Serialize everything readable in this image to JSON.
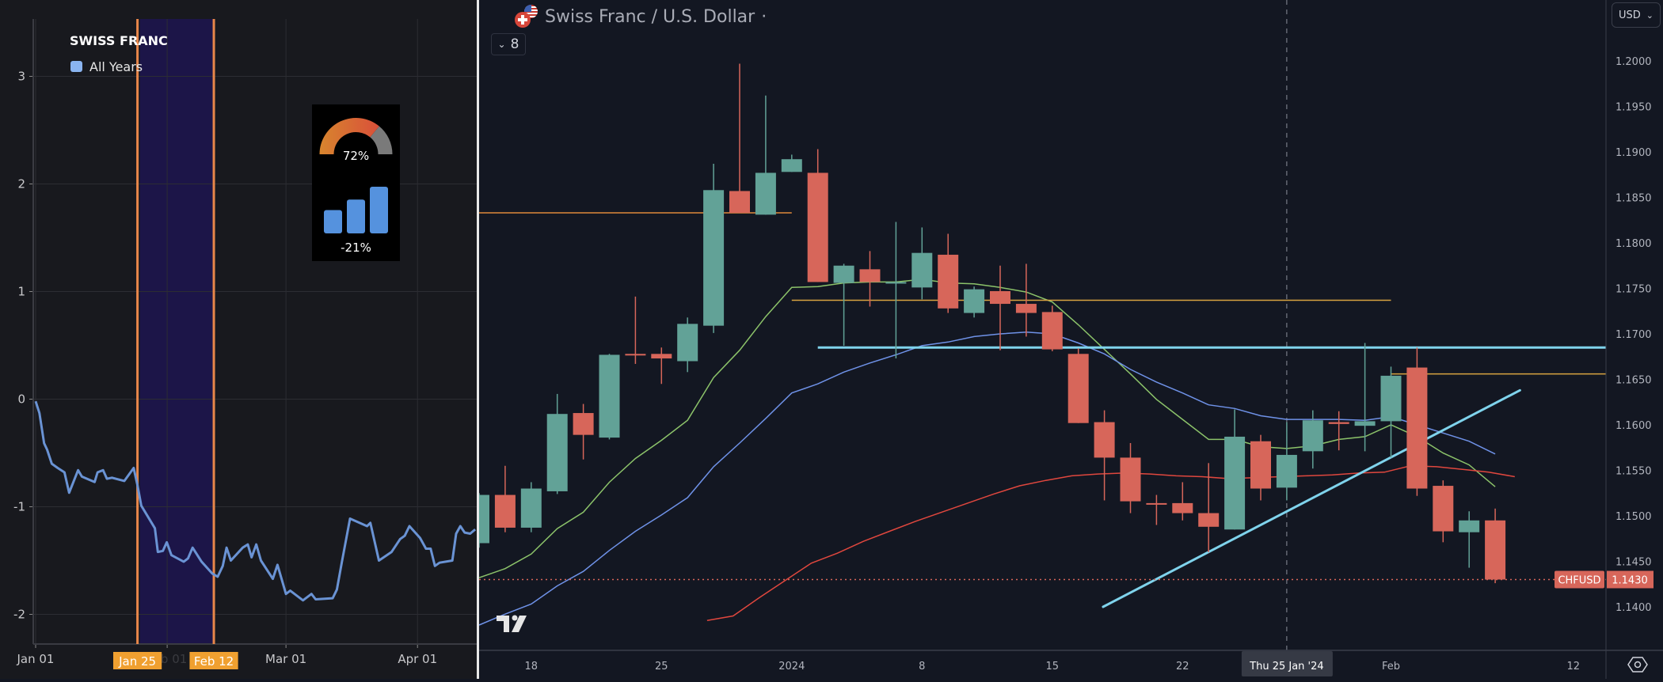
{
  "left_panel": {
    "legend_title": "SWISS FRANC",
    "legend_item": "All Years",
    "legend_color": "#8ab4f0",
    "line_color": "#6a93d4",
    "highlight_start_label": "Jan 25",
    "highlight_end_label": "Feb 12",
    "gauge": {
      "value_percent": 72,
      "label": "72%"
    },
    "bars_widget": {
      "values": [
        1,
        1.45,
        2
      ],
      "label": "-21%"
    }
  },
  "chart_data": [
    {
      "type": "line",
      "title": "SWISS FRANC",
      "legend": [
        "All Years"
      ],
      "x_unit": "day of year",
      "x_ticks": [
        {
          "day": 0,
          "label": "Jan 01"
        },
        {
          "day": 31,
          "label": "Feb 01"
        },
        {
          "day": 59,
          "label": "Mar 01"
        },
        {
          "day": 90,
          "label": "Apr 01"
        }
      ],
      "y_ticks": [
        3,
        2,
        1,
        0,
        -1,
        -2
      ],
      "ylim": [
        -2.28,
        3.46
      ],
      "xlim": [
        -0.5,
        103.6
      ],
      "highlight_range_days": [
        24,
        42
      ],
      "series": [
        {
          "name": "All Years",
          "x": [
            0,
            0.9,
            2,
            2.7,
            3.8,
            5.2,
            6.8,
            7.9,
            10,
            10.9,
            13.9,
            14.6,
            15.9,
            16.8,
            18,
            20.9,
            23.1,
            24,
            24.9,
            28.1,
            28.8,
            30,
            30.9,
            32,
            34.9,
            35.9,
            37,
            39.1,
            41.6,
            42.9,
            44.1,
            45,
            46,
            48.8,
            50,
            50.9,
            52,
            53.1,
            55.9,
            57,
            59,
            60,
            63,
            65,
            66,
            70,
            71,
            72.2,
            74.1,
            78.1,
            78.9,
            80.9,
            83.9,
            85.9,
            87,
            88.1,
            90.6,
            92,
            93.1,
            94.1,
            95.2,
            98.2,
            99.1,
            100.1,
            101.1,
            102.4,
            103.6
          ],
          "y": [
            -0.02,
            -0.13,
            -0.41,
            -0.47,
            -0.6,
            -0.64,
            -0.68,
            -0.87,
            -0.66,
            -0.72,
            -0.77,
            -0.68,
            -0.66,
            -0.74,
            -0.73,
            -0.76,
            -0.64,
            -0.8,
            -0.99,
            -1.2,
            -1.42,
            -1.41,
            -1.33,
            -1.45,
            -1.51,
            -1.48,
            -1.38,
            -1.51,
            -1.62,
            -1.65,
            -1.55,
            -1.38,
            -1.5,
            -1.38,
            -1.35,
            -1.47,
            -1.35,
            -1.5,
            -1.67,
            -1.54,
            -1.81,
            -1.78,
            -1.87,
            -1.81,
            -1.86,
            -1.85,
            -1.77,
            -1.51,
            -1.11,
            -1.18,
            -1.15,
            -1.5,
            -1.42,
            -1.3,
            -1.27,
            -1.18,
            -1.29,
            -1.39,
            -1.39,
            -1.55,
            -1.52,
            -1.5,
            -1.25,
            -1.18,
            -1.24,
            -1.25,
            -1.21
          ]
        }
      ]
    },
    {
      "type": "candlestick",
      "title": "Swiss Franc / U.S. Dollar",
      "symbol": "CHFUSD",
      "last_price": "1.1430",
      "currency": "USD",
      "ylim": [
        1.1355,
        1.2067
      ],
      "y_ticks": [
        "1.2000",
        "1.1950",
        "1.1900",
        "1.1850",
        "1.1800",
        "1.1750",
        "1.1700",
        "1.1650",
        "1.1600",
        "1.1550",
        "1.1500",
        "1.1450",
        "1.1400"
      ],
      "x_ticks": [
        {
          "i": 2,
          "label": "18"
        },
        {
          "i": 7,
          "label": "25"
        },
        {
          "i": 12,
          "label": "2024"
        },
        {
          "i": 17,
          "label": "8"
        },
        {
          "i": 22,
          "label": "15"
        },
        {
          "i": 27,
          "label": "22"
        },
        {
          "i": 35,
          "label": "Feb"
        },
        {
          "i": 42,
          "label": "12"
        }
      ],
      "crosshair": {
        "i": 31,
        "label": "Thu 25 Jan '24"
      },
      "colors": {
        "up": "#62a297",
        "down": "#d7665a"
      },
      "candles": [
        [
          1.147,
          1.1525,
          1.1465,
          1.1523
        ],
        [
          1.1523,
          1.1555,
          1.1482,
          1.1487
        ],
        [
          1.1487,
          1.1537,
          1.1482,
          1.153
        ],
        [
          1.1527,
          1.1634,
          1.1524,
          1.1612
        ],
        [
          1.1613,
          1.1623,
          1.1562,
          1.1589
        ],
        [
          1.1586,
          1.1678,
          1.1584,
          1.1677
        ],
        [
          1.1678,
          1.1741,
          1.1667,
          1.1677
        ],
        [
          1.1678,
          1.1685,
          1.1645,
          1.1673
        ],
        [
          1.167,
          1.1718,
          1.1658,
          1.1711
        ],
        [
          1.1709,
          1.1887,
          1.1701,
          1.1858
        ],
        [
          1.1857,
          1.1997,
          1.1833,
          1.1833
        ],
        [
          1.1831,
          1.1962,
          1.1831,
          1.1877
        ],
        [
          1.1878,
          1.1897,
          1.1878,
          1.1892
        ],
        [
          1.1877,
          1.1903,
          1.1757,
          1.1757
        ],
        [
          1.1756,
          1.1777,
          1.1687,
          1.1775
        ],
        [
          1.1771,
          1.1791,
          1.173,
          1.1757
        ],
        [
          1.1756,
          1.1823,
          1.1673,
          1.1757
        ],
        [
          1.1751,
          1.1817,
          1.1738,
          1.1789
        ],
        [
          1.1787,
          1.181,
          1.1723,
          1.1728
        ],
        [
          1.1723,
          1.1752,
          1.1718,
          1.1749
        ],
        [
          1.1747,
          1.1775,
          1.1682,
          1.1733
        ],
        [
          1.1733,
          1.1777,
          1.1697,
          1.1723
        ],
        [
          1.1724,
          1.1731,
          1.1681,
          1.1683
        ],
        [
          1.1678,
          1.1684,
          1.1602,
          1.1602
        ],
        [
          1.1603,
          1.1616,
          1.1517,
          1.1564
        ],
        [
          1.1564,
          1.158,
          1.1503,
          1.1516
        ],
        [
          1.1514,
          1.1523,
          1.149,
          1.1513
        ],
        [
          1.1514,
          1.1537,
          1.1495,
          1.1503
        ],
        [
          1.1503,
          1.1558,
          1.146,
          1.1488
        ],
        [
          1.1485,
          1.1617,
          1.1485,
          1.1587
        ],
        [
          1.1582,
          1.1589,
          1.1517,
          1.153
        ],
        [
          1.1531,
          1.1603,
          1.1517,
          1.1567
        ],
        [
          1.1571,
          1.1616,
          1.1552,
          1.1605
        ],
        [
          1.1603,
          1.1615,
          1.1572,
          1.1601
        ],
        [
          1.1599,
          1.169,
          1.1571,
          1.1604
        ],
        [
          1.1604,
          1.1664,
          1.1564,
          1.1654
        ],
        [
          1.1663,
          1.1685,
          1.1522,
          1.153
        ],
        [
          1.1533,
          1.1539,
          1.1471,
          1.1483
        ],
        [
          1.1482,
          1.1505,
          1.1443,
          1.1495
        ],
        [
          1.1495,
          1.1508,
          1.1426,
          1.143
        ]
      ],
      "moving_averages": [
        {
          "color": "#8cc36a",
          "start": 0,
          "values": [
            1.1432,
            1.1442,
            1.1458,
            1.1486,
            1.1504,
            1.1537,
            1.1563,
            1.1583,
            1.1605,
            1.1652,
            1.1682,
            1.1719,
            1.1751,
            1.1752,
            1.1756,
            1.1757,
            1.1757,
            1.176,
            1.1756,
            1.1755,
            1.1751,
            1.1746,
            1.1735,
            1.171,
            1.1683,
            1.1656,
            1.1628,
            1.1606,
            1.1584,
            1.1584,
            1.1576,
            1.1574,
            1.1577,
            1.1584,
            1.1587,
            1.16,
            1.1587,
            1.1569,
            1.1556,
            1.1532
          ]
        },
        {
          "color": "#6f92e8",
          "start": 0,
          "values": [
            1.138,
            1.1392,
            1.1403,
            1.1423,
            1.1439,
            1.1462,
            1.1483,
            1.1501,
            1.152,
            1.1554,
            1.158,
            1.1607,
            1.1635,
            1.1645,
            1.1658,
            1.1668,
            1.1677,
            1.1687,
            1.1691,
            1.1697,
            1.17,
            1.1702,
            1.17,
            1.169,
            1.1678,
            1.1661,
            1.1647,
            1.1635,
            1.1622,
            1.1618,
            1.161,
            1.1606,
            1.1606,
            1.1606,
            1.1605,
            1.1609,
            1.16,
            1.1591,
            1.1582,
            1.1568
          ]
        },
        {
          "color": "#e0473e",
          "start": 8.75,
          "values": [
            1.1385,
            1.139,
            1.141,
            1.1429,
            1.1448,
            1.1459,
            1.1472,
            1.1483,
            1.1494,
            1.1504,
            1.1514,
            1.1524,
            1.1533,
            1.1539,
            1.1544,
            1.1546,
            1.1547,
            1.1546,
            1.1544,
            1.1543,
            1.1541,
            1.1542,
            1.1543,
            1.1544,
            1.1545,
            1.1547,
            1.1548,
            1.1555,
            1.1554,
            1.1551,
            1.1548,
            1.1543
          ]
        }
      ],
      "drawings": [
        {
          "kind": "hline",
          "color": "#e0883a",
          "price": 1.1833,
          "from": 0,
          "to": 12,
          "width": 1.5
        },
        {
          "kind": "hline",
          "color": "#d9a441",
          "price": 1.1737,
          "from": 12,
          "to": 35,
          "width": 1.5
        },
        {
          "kind": "hline",
          "color": "#d9a441",
          "price": 1.1656,
          "from": 35,
          "to": 44,
          "width": 1.5
        },
        {
          "kind": "hline",
          "color": "#7fd3ec",
          "price": 1.1685,
          "from": 13,
          "to": 44,
          "width": 3
        },
        {
          "kind": "trend",
          "color": "#7fd3ec",
          "p1": [
            23.95,
            1.14
          ],
          "p2": [
            39.95,
            1.1638
          ],
          "width": 3
        }
      ]
    }
  ],
  "header": {
    "title": "Swiss Franc / U.S. Dollar",
    "dot": "·",
    "indicator_count": "8",
    "currency_button": "USD"
  }
}
